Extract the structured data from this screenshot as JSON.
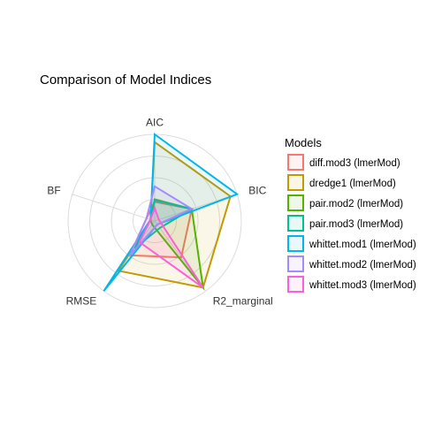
{
  "chart_data": {
    "type": "radar",
    "title": "Comparison of Model Indices",
    "axes": [
      "AIC",
      "BIC",
      "R2_marginal",
      "RMSE",
      "BF"
    ],
    "rlim": [
      0,
      1
    ],
    "grid": true,
    "legend": {
      "title": "Models",
      "position": "right"
    },
    "series": [
      {
        "name": "diff.mod3 (lmerMod)",
        "color": "#F8766D",
        "values": {
          "AIC": 0.22,
          "BIC": 0.45,
          "R2_marginal": 0.52,
          "RMSE": 0.49,
          "BF": 0.1
        }
      },
      {
        "name": "dredge1 (lmerMod)",
        "color": "#C49A00",
        "values": {
          "AIC": 0.91,
          "BIC": 0.92,
          "R2_marginal": 0.95,
          "RMSE": 0.71,
          "BF": 0.05
        }
      },
      {
        "name": "pair.mod2 (lmerMod)",
        "color": "#53B400",
        "values": {
          "AIC": 0.25,
          "BIC": 0.45,
          "R2_marginal": 0.95,
          "RMSE": 0.05,
          "BF": 0.05
        }
      },
      {
        "name": "pair.mod3 (lmerMod)",
        "color": "#00C094",
        "values": {
          "AIC": 0.24,
          "BIC": 0.45,
          "R2_marginal": 0.1,
          "RMSE": 0.39,
          "BF": 0.05
        }
      },
      {
        "name": "whittet.mod1 (lmerMod)",
        "color": "#00B6EB",
        "values": {
          "AIC": 1.0,
          "BIC": 1.0,
          "R2_marginal": 0.05,
          "RMSE": 1.0,
          "BF": 0.05
        }
      },
      {
        "name": "whittet.mod2 (lmerMod)",
        "color": "#A58AFF",
        "values": {
          "AIC": 0.4,
          "BIC": 0.45,
          "R2_marginal": 0.05,
          "RMSE": 0.49,
          "BF": 0.1
        }
      },
      {
        "name": "whittet.mod3 (lmerMod)",
        "color": "#FB61D7",
        "values": {
          "AIC": 0.15,
          "BIC": 0.05,
          "R2_marginal": 0.95,
          "RMSE": 0.3,
          "BF": 0.05
        }
      }
    ]
  }
}
